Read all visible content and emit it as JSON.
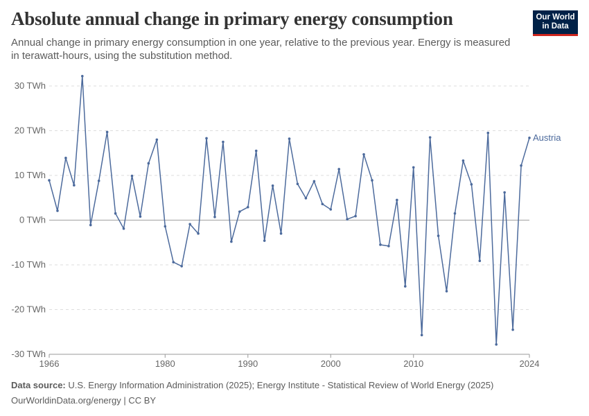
{
  "header": {
    "title": "Absolute annual change in primary energy consumption",
    "subtitle": "Annual change in primary energy consumption in one year, relative to the previous year. Energy is measured in terawatt-hours, using the substitution method."
  },
  "logo": {
    "line1": "Our World",
    "line2": "in Data"
  },
  "footer": {
    "source_label": "Data source:",
    "source_text": "U.S. Energy Information Administration (2025); Energy Institute - Statistical Review of World Energy (2025)",
    "url_text": "OurWorldinData.org/energy | CC BY"
  },
  "colors": {
    "series": "#4c6a9c",
    "grid": "#dddddd",
    "zero_line": "#a0a0a0",
    "logo_bg": "#002147",
    "logo_accent": "#ce261e"
  },
  "chart_data": {
    "type": "line",
    "ylim": [
      -30,
      30
    ],
    "xlim": [
      1966,
      2024
    ],
    "y_ticks": [
      30,
      20,
      10,
      0,
      -10,
      -20,
      -30
    ],
    "y_tick_labels": [
      "30 TWh",
      "20 TWh",
      "10 TWh",
      "0 TWh",
      "-10 TWh",
      "-20 TWh",
      "-30 TWh"
    ],
    "x_ticks": [
      1966,
      1980,
      1990,
      2000,
      2010,
      2024
    ],
    "x_tick_labels": [
      "1966",
      "1980",
      "1990",
      "2000",
      "2010",
      "2024"
    ],
    "grid": "horizontal dashed",
    "series": [
      {
        "name": "Austria",
        "x": [
          1966,
          1967,
          1968,
          1969,
          1970,
          1971,
          1972,
          1973,
          1974,
          1975,
          1976,
          1977,
          1978,
          1979,
          1980,
          1981,
          1982,
          1983,
          1984,
          1985,
          1986,
          1987,
          1988,
          1989,
          1990,
          1991,
          1992,
          1993,
          1994,
          1995,
          1996,
          1997,
          1998,
          1999,
          2000,
          2001,
          2002,
          2003,
          2004,
          2005,
          2006,
          2007,
          2008,
          2009,
          2010,
          2011,
          2012,
          2013,
          2014,
          2015,
          2016,
          2017,
          2018,
          2019,
          2020,
          2021,
          2022,
          2023,
          2024
        ],
        "values": [
          8.9,
          2.1,
          13.9,
          7.8,
          32.2,
          -1.1,
          8.8,
          19.7,
          1.5,
          -1.9,
          9.9,
          0.8,
          12.7,
          18.0,
          -1.4,
          -9.4,
          -10.3,
          -0.9,
          -3.0,
          18.3,
          0.7,
          17.5,
          -4.8,
          1.9,
          2.9,
          15.5,
          -4.6,
          7.7,
          -3.0,
          18.2,
          8.1,
          4.9,
          8.7,
          3.6,
          2.4,
          11.4,
          0.2,
          0.9,
          14.7,
          8.9,
          -5.5,
          -5.8,
          4.5,
          -14.8,
          11.8,
          -25.7,
          18.5,
          -3.5,
          -15.9,
          1.5,
          13.3,
          8.0,
          -9.1,
          19.5,
          -27.8,
          6.2,
          -24.5,
          12.2,
          18.4
        ]
      }
    ]
  }
}
